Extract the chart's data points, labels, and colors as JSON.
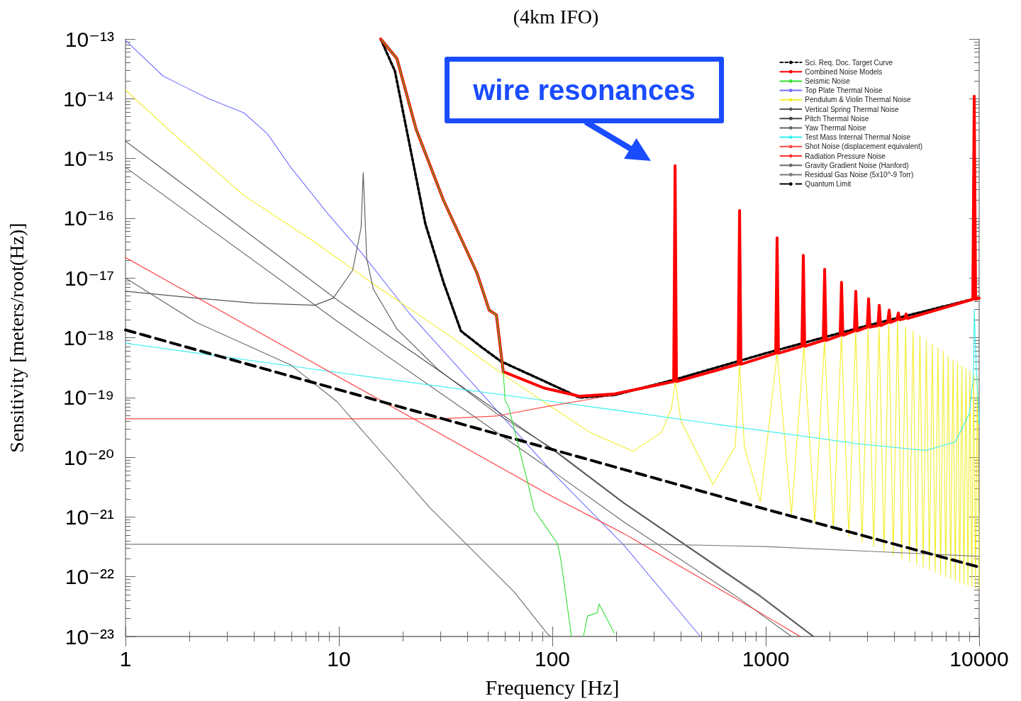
{
  "chart_data": {
    "type": "line",
    "title": "(4km IFO)",
    "xlabel": "Frequency [Hz]",
    "ylabel": "Sensitivity [meters/root(Hz)]",
    "log": "xy",
    "grid": false,
    "legend": "top right",
    "xlim": [
      1,
      10000
    ],
    "xticks": [
      1,
      10,
      100,
      1000,
      10000
    ],
    "ylim": [
      1e-23,
      1e-13
    ],
    "yticks": [
      {
        "value": 1e-23,
        "label": "10⁻²³"
      },
      {
        "value": 1e-22,
        "label": "10⁻²²"
      },
      {
        "value": 1e-21,
        "label": "10⁻²¹"
      },
      {
        "value": 1e-20,
        "label": "10⁻²⁰"
      },
      {
        "value": 1e-19,
        "label": "10⁻¹⁹"
      },
      {
        "value": 1e-18,
        "label": "10⁻¹⁸"
      },
      {
        "value": 1e-17,
        "label": "10⁻¹⁷"
      },
      {
        "value": 1e-16,
        "label": "10⁻¹⁶"
      },
      {
        "value": 1e-15,
        "label": "10⁻¹⁵"
      },
      {
        "value": 1e-14,
        "label": "10⁻¹⁴"
      },
      {
        "value": 1e-13,
        "label": "10⁻¹³"
      }
    ],
    "annotations": [
      "wire resonances"
    ],
    "series": [
      {
        "name": "Sci. Req. Doc. Target Curve",
        "color": "#000000",
        "line_style": "dotted",
        "x": [
          15.7,
          18.3,
          25.4,
          30.9,
          37.3,
          47,
          57.6,
          91,
          134,
          196,
          376,
          1000,
          3000,
          10000
        ],
        "values": [
          1e-13,
          2.9e-14,
          8.1e-17,
          8.5e-18,
          1.3e-18,
          6.8e-19,
          4e-19,
          1.9e-19,
          1e-19,
          1.1e-19,
          2e-19,
          5.5e-19,
          1.6e-18,
          4.7e-18
        ]
      },
      {
        "name": "Combined Noise Models",
        "color": "#ff0000",
        "line_style": "solid",
        "x": [
          15.7,
          18.7,
          23.0,
          30.9,
          44.4,
          50.6,
          54.7,
          58.9,
          91,
          134,
          196,
          370.4,
          376,
          381.6,
          742.7,
          754,
          765.3,
          1113,
          1130,
          1147,
          1477.5,
          1500,
          1522.5,
          1860,
          1888,
          1916,
          2231,
          2265,
          2299,
          2602,
          2642,
          2682,
          2988,
          3033,
          3078,
          3353,
          3404,
          3455,
          3729,
          3786,
          3843,
          4117,
          4180,
          4243,
          4482,
          4550,
          4618,
          9338,
          9480,
          9622,
          10000
        ],
        "values": [
          1e-13,
          4.7e-14,
          3.1e-15,
          2e-16,
          1.2e-17,
          2.9e-18,
          2.4e-18,
          2.7e-19,
          1.45e-19,
          1.05e-19,
          1.15e-19,
          1.85e-19,
          7.6e-16,
          1.85e-19,
          3.6e-19,
          1.35e-16,
          3.6e-19,
          5.5e-19,
          4.7e-17,
          5.5e-19,
          7.2e-19,
          2.4e-17,
          7.2e-19,
          9e-19,
          1.4e-17,
          9e-19,
          1.1e-18,
          8.5e-18,
          1.1e-18,
          1.3e-18,
          6e-18,
          1.3e-18,
          1.5e-18,
          4.5e-18,
          1.5e-18,
          1.6e-18,
          3.5e-18,
          1.6e-18,
          1.8e-18,
          2.9e-18,
          1.8e-18,
          2e-18,
          2.6e-18,
          2e-18,
          2.1e-18,
          2.5e-18,
          2.1e-18,
          4.4e-18,
          1.1e-14,
          4.4e-18,
          4.6e-18
        ]
      },
      {
        "name": "Seismic Noise",
        "color": "#33e033",
        "line_style": "solid",
        "x": [
          15.7,
          18.7,
          23.0,
          30.9,
          44.4,
          50.6,
          54.7,
          58.9,
          60.1,
          62.4,
          76,
          82.3,
          105.6,
          109.5,
          123,
          130,
          140,
          146,
          162.6,
          165.6,
          195
        ],
        "values": [
          1e-13,
          4.7e-14,
          3.1e-15,
          2e-16,
          1.2e-17,
          2.9e-18,
          2.4e-18,
          2.7e-19,
          9e-20,
          7e-20,
          4.3e-21,
          1.3e-21,
          3.6e-22,
          2e-22,
          1e-23,
          null,
          1e-23,
          2.2e-23,
          2.5e-23,
          3.5e-23,
          1.15e-23
        ]
      },
      {
        "name": "Top Plate Thermal Noise",
        "color": "#7070ff",
        "line_style": "solid",
        "x": [
          1,
          1.5,
          2.45,
          3.59,
          4.62,
          5.95,
          8.7,
          12.7,
          21.3,
          50,
          100,
          216,
          494
        ],
        "values": [
          9.5e-14,
          2.4e-14,
          1e-14,
          5.8e-15,
          2.6e-15,
          7.1e-16,
          1.3e-16,
          2.7e-17,
          2.6e-18,
          8.9e-20,
          5.6e-21,
          3.4e-22,
          1e-23
        ]
      },
      {
        "name": "Pendulum & Violin Thermal Noise",
        "color": "#f2ee2a",
        "line_style": "solid",
        "x": [
          1,
          1.67,
          3.59,
          7.7,
          14.5,
          30.6,
          62.4,
          91,
          150,
          239,
          325,
          361,
          377,
          400,
          565,
          720,
          754,
          794,
          942,
          1131,
          1320,
          1508,
          1697,
          1885,
          2074,
          2262,
          2451,
          2639,
          2828,
          3016,
          3205,
          3393,
          3582,
          3770,
          3959,
          4147,
          4336,
          4524,
          4713,
          4901,
          5090,
          5278,
          5467,
          5655,
          5844,
          6032,
          6221,
          6409,
          6598,
          6786,
          6975,
          7163,
          7352,
          7540,
          7729,
          7917,
          8106,
          8294,
          8483,
          8671,
          8860,
          9048,
          9237,
          9425,
          9614,
          9802,
          10000
        ],
        "values": [
          1.4e-14,
          2.6e-15,
          2.4e-16,
          4e-17,
          7.9e-18,
          1.3e-18,
          2.1e-19,
          8.5e-20,
          2.6e-20,
          1.26e-20,
          2.6e-20,
          6.5e-20,
          1.85e-19,
          4.1e-20,
          3.5e-21,
          1.5e-20,
          3.6e-19,
          1.5e-20,
          1.8e-21,
          5.5e-19,
          1.1e-21,
          7.2e-19,
          7.9e-22,
          9e-19,
          6e-22,
          1.1e-18,
          4.7e-22,
          1.3e-18,
          3.8e-22,
          1.5e-18,
          3.2e-22,
          1.6e-18,
          2.7e-22,
          1.8e-18,
          2.3e-22,
          2e-18,
          2e-22,
          1.55e-18,
          1.8e-22,
          1.3e-18,
          1.6e-22,
          1.1e-18,
          1.45e-22,
          9.1e-19,
          1.3e-22,
          7.9e-19,
          1.2e-22,
          6.8e-19,
          1.1e-22,
          5.9e-19,
          1e-22,
          4.9e-19,
          9.3e-23,
          4.3e-19,
          8.7e-23,
          3.8e-19,
          8.1e-23,
          3.4e-19,
          7.6e-23,
          3e-19,
          7.2e-23,
          2.7e-19,
          6.9e-23,
          2.4e-19,
          6.6e-23,
          2.2e-19,
          6.6e-23
        ]
      },
      {
        "name": "Vertical Spring Thermal Noise",
        "color": "#555555",
        "line_style": "solid",
        "x": [
          1,
          2.15,
          4,
          7.7,
          9.4,
          11.6,
          12.7,
          13.0,
          13.5,
          14.5,
          18.7,
          29,
          54.7,
          100,
          216,
          946,
          1680
        ],
        "values": [
          6e-18,
          4.6e-18,
          3.8e-18,
          3.5e-18,
          4.6e-18,
          1.35e-17,
          6.9e-17,
          5.8e-16,
          2.1e-17,
          6.5e-18,
          1.4e-18,
          3e-19,
          5.4e-20,
          1.4e-20,
          1.75e-21,
          4.8e-23,
          1e-23
        ]
      },
      {
        "name": "Pitch Thermal Noise",
        "color": "#444444",
        "line_style": "solid",
        "x": [
          1,
          10,
          100,
          216,
          946,
          1665
        ],
        "values": [
          1.95e-15,
          4.1e-18,
          1.35e-20,
          1.7e-21,
          4.6e-23,
          1e-23
        ]
      },
      {
        "name": "Yaw Thermal Noise",
        "color": "#666666",
        "line_style": "solid",
        "x": [
          1,
          10,
          100,
          216,
          734,
          1320
        ],
        "values": [
          7.1e-16,
          1.8e-18,
          5.9e-21,
          8.3e-22,
          4.6e-23,
          1e-23
        ]
      },
      {
        "name": "Test Mass Internal Thermal Noise",
        "color": "#33f0f0",
        "line_style": "solid",
        "x": [
          1,
          11.8,
          216,
          543,
          2776,
          5640,
          7730,
          9000,
          9400,
          9480,
          9700,
          10000
        ],
        "values": [
          8.1e-19,
          2.4e-19,
          5.9e-20,
          3.7e-20,
          1.66e-20,
          1.3e-20,
          1.8e-20,
          5.4e-20,
          2.3e-19,
          3e-18,
          3e-19,
          3.7e-20
        ]
      },
      {
        "name": "Shot Noise (displacement equivalent)",
        "color": "#ff4a4a",
        "line_style": "solid",
        "x": [
          1,
          30,
          54.7,
          91,
          196,
          300
        ],
        "values": [
          4.4e-20,
          4.4e-20,
          4.9e-20,
          6.9e-20,
          1.1e-19,
          1.6e-19
        ]
      },
      {
        "name": "Radiation Pressure Noise",
        "color": "#ff3030",
        "line_style": "solid",
        "x": [
          1,
          10,
          100,
          216,
          1000,
          1450
        ],
        "values": [
          2.2e-17,
          2.2e-19,
          2.2e-21,
          5.3e-22,
          2.2e-23,
          1e-23
        ]
      },
      {
        "name": "Gravity Gradient Noise (Hanford)",
        "color": "#6a6a6a",
        "line_style": "solid",
        "x": [
          1,
          2.15,
          5.95,
          9.8,
          26.6,
          39.9,
          66.5,
          95,
          98.5
        ],
        "values": [
          1e-17,
          1.8e-18,
          3.5e-19,
          8.5e-20,
          1.45e-21,
          3.4e-22,
          5.5e-23,
          1.1e-23,
          1e-23
        ]
      },
      {
        "name": "Residual Gas Noise (5x10^-9 Torr)",
        "color": "#7a7a7a",
        "line_style": "solid",
        "x": [
          1,
          300,
          1000,
          3600,
          10000
        ],
        "values": [
          3.5e-22,
          3.5e-22,
          3.2e-22,
          2.6e-22,
          2.2e-22
        ]
      },
      {
        "name": "Quantum Limit",
        "color": "#000000",
        "line_style": "dashed",
        "x": [
          1,
          10,
          100,
          1000,
          10000
        ],
        "values": [
          1.35e-18,
          1.35e-19,
          1.35e-20,
          1.35e-21,
          1.45e-22
        ]
      }
    ]
  }
}
